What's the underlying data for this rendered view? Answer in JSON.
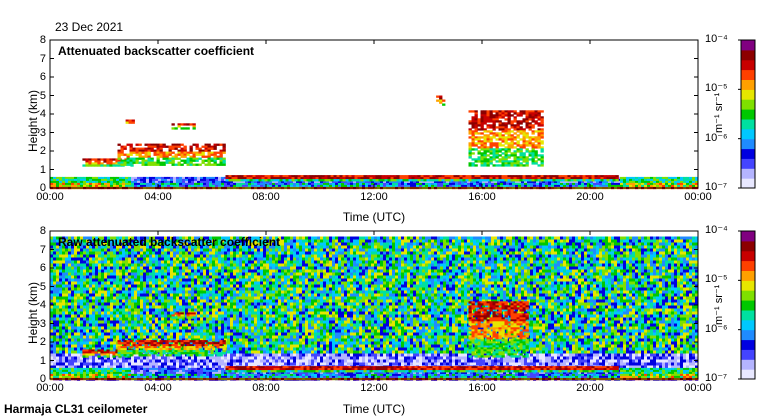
{
  "date": "23 Dec 2021",
  "station": "Harmaja CL31 ceilometer",
  "colors": {
    "scale": [
      "#e8e8ff",
      "#b4b4ff",
      "#4444ff",
      "#0000e0",
      "#1f8bff",
      "#00c8ff",
      "#00e0a0",
      "#00c800",
      "#7fe000",
      "#e6e600",
      "#ffa000",
      "#ff4000",
      "#c80000",
      "#8c0000",
      "#800080"
    ],
    "axis": "#000000"
  },
  "chart_data": [
    {
      "type": "heatmap",
      "title": "Attenuated backscatter coefficient",
      "xlabel": "Time (UTC)",
      "ylabel": "Height (km)",
      "x_ticks": [
        "00:00",
        "04:00",
        "08:00",
        "12:00",
        "16:00",
        "20:00",
        "00:00"
      ],
      "y_ticks": [
        "0",
        "1",
        "2",
        "3",
        "4",
        "5",
        "6",
        "7",
        "8"
      ],
      "xlim_hours": [
        0,
        24
      ],
      "ylim_km": [
        0,
        8
      ],
      "colorbar": {
        "ticks": [
          "10⁻⁴",
          "10⁻⁵",
          "10⁻⁶",
          "10⁻⁷"
        ],
        "unit": "m⁻¹ sr⁻¹",
        "scale": "log",
        "range": [
          1e-07,
          0.0001
        ]
      },
      "features": [
        {
          "type": "surface-layer",
          "t": [
            0,
            24
          ],
          "h": [
            0,
            0.6
          ]
        },
        {
          "type": "boundary-cloud",
          "t": [
            6.5,
            21
          ],
          "h": [
            0.4,
            0.7
          ]
        },
        {
          "type": "cloud",
          "t": [
            1.2,
            3
          ],
          "h": [
            1.2,
            1.6
          ]
        },
        {
          "type": "cloud",
          "t": [
            2.5,
            6.5
          ],
          "h": [
            1.3,
            2.4
          ]
        },
        {
          "type": "cloud",
          "t": [
            2.8,
            3.1
          ],
          "h": [
            3.5,
            3.7
          ]
        },
        {
          "type": "cloud",
          "t": [
            4.5,
            5.3
          ],
          "h": [
            3.2,
            3.5
          ]
        },
        {
          "type": "cloud",
          "t": [
            14.3,
            14.6
          ],
          "h": [
            4.5,
            5.0
          ]
        },
        {
          "type": "cloud",
          "t": [
            15.5,
            18.2
          ],
          "h": [
            1.2,
            4.2
          ]
        }
      ]
    },
    {
      "type": "heatmap",
      "title": "Raw attenuated backscatter coefficient",
      "xlabel": "Time (UTC)",
      "ylabel": "Height (km)",
      "x_ticks": [
        "00:00",
        "04:00",
        "08:00",
        "12:00",
        "16:00",
        "20:00",
        "00:00"
      ],
      "y_ticks": [
        "0",
        "1",
        "2",
        "3",
        "4",
        "5",
        "6",
        "7",
        "8"
      ],
      "xlim_hours": [
        0,
        24
      ],
      "ylim_km": [
        0,
        8
      ],
      "colorbar": {
        "ticks": [
          "10⁻⁴",
          "10⁻⁵",
          "10⁻⁶",
          "10⁻⁷"
        ],
        "unit": "m⁻¹ sr⁻¹",
        "scale": "log",
        "range": [
          1e-07,
          0.0001
        ]
      },
      "features": [
        {
          "type": "noise-background",
          "t": [
            0,
            24
          ],
          "h": [
            0,
            7.7
          ]
        },
        {
          "type": "surface-layer",
          "t": [
            0,
            24
          ],
          "h": [
            0,
            0.6
          ]
        },
        {
          "type": "boundary-cloud",
          "t": [
            6.5,
            21
          ],
          "h": [
            0.4,
            0.7
          ]
        },
        {
          "type": "cloud",
          "t": [
            1.2,
            3
          ],
          "h": [
            1.2,
            1.6
          ]
        },
        {
          "type": "cloud",
          "t": [
            2.5,
            6.5
          ],
          "h": [
            1.3,
            2.1
          ]
        },
        {
          "type": "cloud",
          "t": [
            4.5,
            5.3
          ],
          "h": [
            3.3,
            3.6
          ]
        },
        {
          "type": "cloud",
          "t": [
            15.5,
            17.7
          ],
          "h": [
            1.2,
            4.2
          ]
        }
      ]
    }
  ]
}
